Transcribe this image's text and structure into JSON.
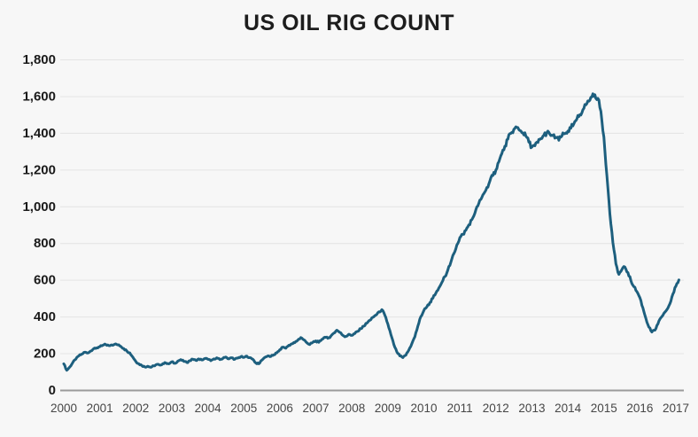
{
  "chart_title": "US OIL RIG COUNT",
  "colors": {
    "background": "#f7f7f7",
    "grid_line": "#e4e4e4",
    "axis_line": "#9b9b9b",
    "series_line": "#1d5f7e",
    "title_text": "#1d1d1d",
    "y_tick_text": "#1a1a1a",
    "x_tick_text": "#474747"
  },
  "chart_data": {
    "type": "line",
    "title": "US OIL RIG COUNT",
    "xlabel": "",
    "ylabel": "",
    "xlim": [
      2000,
      2017.1
    ],
    "ylim": [
      0,
      1800
    ],
    "grid": "horizontal",
    "legend_position": "none",
    "x_ticks": [
      "2000",
      "2001",
      "2002",
      "2003",
      "2004",
      "2005",
      "2006",
      "2007",
      "2008",
      "2009",
      "2010",
      "2011",
      "2012",
      "2013",
      "2014",
      "2015",
      "2016",
      "2017"
    ],
    "y_ticks": [
      0,
      200,
      400,
      600,
      800,
      1000,
      1200,
      1400,
      1600,
      1800
    ],
    "x_start_year": 2000,
    "points_per_year": 12,
    "series": [
      {
        "name": "US oil rig count",
        "color": "#1d5f7e",
        "values": [
          145,
          110,
          128,
          152,
          170,
          188,
          198,
          208,
          204,
          215,
          228,
          232,
          238,
          246,
          250,
          244,
          248,
          252,
          248,
          240,
          228,
          215,
          205,
          182,
          158,
          145,
          136,
          128,
          132,
          126,
          134,
          142,
          138,
          146,
          150,
          145,
          156,
          148,
          160,
          168,
          158,
          152,
          162,
          170,
          164,
          172,
          166,
          174,
          170,
          162,
          172,
          178,
          168,
          174,
          182,
          172,
          178,
          170,
          176,
          184,
          180,
          187,
          179,
          170,
          150,
          145,
          165,
          180,
          188,
          185,
          194,
          205,
          222,
          236,
          230,
          246,
          254,
          260,
          274,
          288,
          276,
          260,
          250,
          262,
          270,
          262,
          278,
          290,
          284,
          296,
          312,
          328,
          316,
          300,
          294,
          306,
          300,
          310,
          322,
          336,
          350,
          366,
          382,
          398,
          410,
          428,
          440,
          410,
          362,
          305,
          250,
          210,
          188,
          179,
          192,
          220,
          255,
          292,
          350,
          402,
          435,
          455,
          478,
          502,
          530,
          558,
          588,
          620,
          656,
          698,
          745,
          792,
          832,
          850,
          872,
          902,
          930,
          965,
          1005,
          1040,
          1072,
          1105,
          1140,
          1170,
          1200,
          1245,
          1290,
          1330,
          1368,
          1400,
          1422,
          1432,
          1415,
          1402,
          1385,
          1352,
          1325,
          1332,
          1350,
          1372,
          1390,
          1404,
          1395,
          1388,
          1378,
          1362,
          1385,
          1398,
          1412,
          1428,
          1452,
          1478,
          1502,
          1528,
          1555,
          1575,
          1598,
          1610,
          1590,
          1520,
          1380,
          1170,
          960,
          805,
          690,
          632,
          658,
          672,
          642,
          598,
          565,
          538,
          505,
          450,
          392,
          345,
          318,
          328,
          362,
          396,
          420,
          440,
          472,
          525,
          568,
          602
        ]
      }
    ]
  }
}
